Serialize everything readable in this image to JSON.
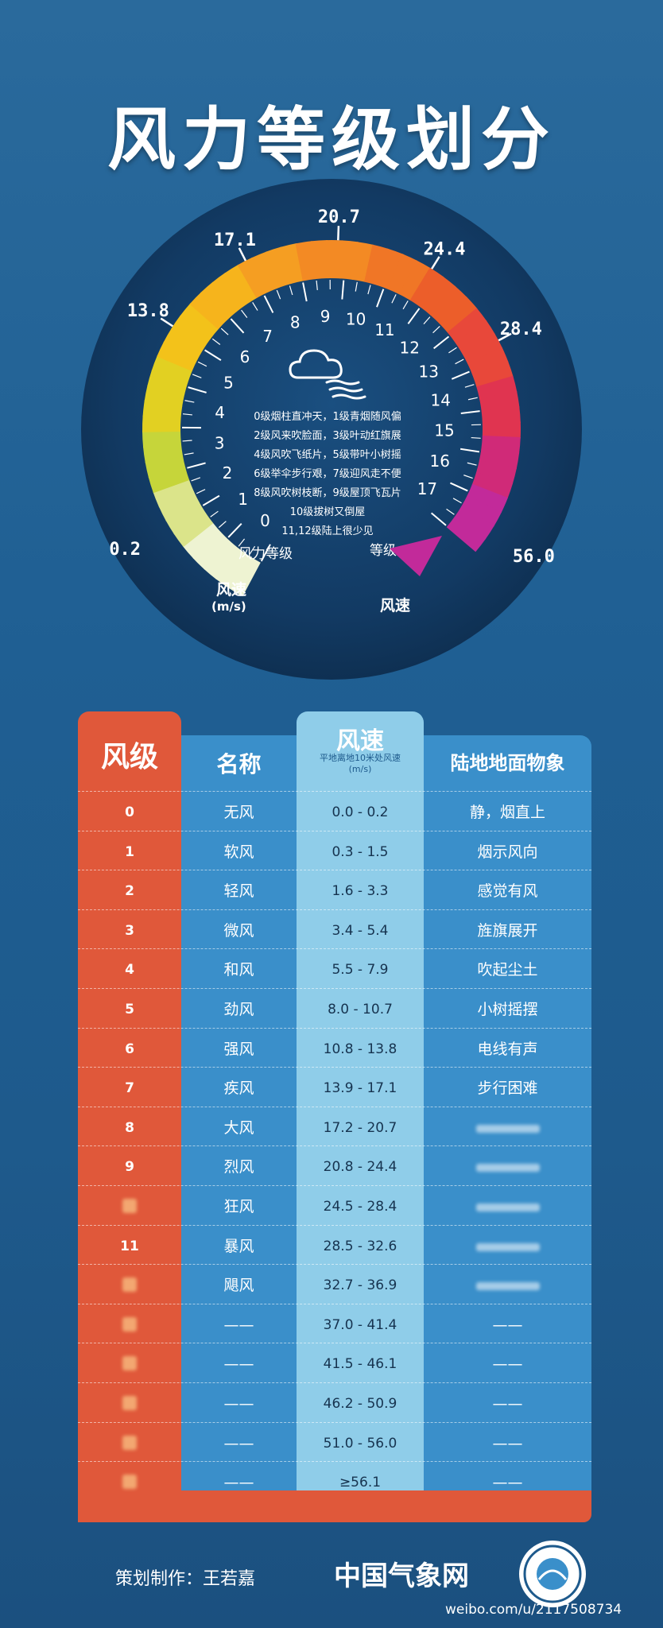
{
  "title": "风力等级划分",
  "gauge": {
    "speed_labels": [
      "0.2",
      "13.8",
      "17.1",
      "20.7",
      "24.4",
      "28.4",
      "56.0"
    ],
    "levels": [
      "0",
      "1",
      "2",
      "3",
      "4",
      "5",
      "6",
      "7",
      "8",
      "9",
      "10",
      "11",
      "12",
      "13",
      "14",
      "15",
      "16",
      "17"
    ],
    "description_lines": [
      "0级烟柱直冲天，1级青烟随风偏",
      "2级风来吹脸面，3级叶动红旗展",
      "4级风吹飞纸片，5级带叶小树摇",
      "6级举伞步行艰，7级迎风走不便",
      "8级风吹树枝断，9级屋顶飞瓦片",
      "10级拔树又倒屋",
      "11,12级陆上很少见"
    ],
    "label_level_left": "风力等级",
    "label_level_right": "等级",
    "label_speed_left": "风速",
    "label_speed_unit": "(m/s)",
    "label_speed_right": "风速",
    "cloud_icon": "cloud-wind-icon"
  },
  "table": {
    "header_level": "风级",
    "header_name": "名称",
    "header_speed": "风速",
    "header_speed_sub": "平地离地10米处风速",
    "header_speed_unit": "(m/s)",
    "header_land": "陆地地面物象",
    "rows": [
      {
        "level": "0",
        "name": "无风",
        "speed": "0.0 - 0.2",
        "land": "静，烟直上"
      },
      {
        "level": "1",
        "name": "软风",
        "speed": "0.3 - 1.5",
        "land": "烟示风向"
      },
      {
        "level": "2",
        "name": "轻风",
        "speed": "1.6 - 3.3",
        "land": "感觉有风"
      },
      {
        "level": "3",
        "name": "微风",
        "speed": "3.4 - 5.4",
        "land": "旌旗展开"
      },
      {
        "level": "4",
        "name": "和风",
        "speed": "5.5 - 7.9",
        "land": "吹起尘土"
      },
      {
        "level": "5",
        "name": "劲风",
        "speed": "8.0 - 10.7",
        "land": "小树摇摆"
      },
      {
        "level": "6",
        "name": "强风",
        "speed": "10.8 - 13.8",
        "land": "电线有声"
      },
      {
        "level": "7",
        "name": "疾风",
        "speed": "13.9 - 17.1",
        "land": "步行困难"
      },
      {
        "level": "8",
        "name": "大风",
        "speed": "17.2 - 20.7",
        "land": ""
      },
      {
        "level": "9",
        "name": "烈风",
        "speed": "20.8 - 24.4",
        "land": ""
      },
      {
        "level": "",
        "name": "狂风",
        "speed": "24.5 - 28.4",
        "land": ""
      },
      {
        "level": "11",
        "name": "暴风",
        "speed": "28.5 - 32.6",
        "land": ""
      },
      {
        "level": "",
        "name": "飓风",
        "speed": "32.7 - 36.9",
        "land": ""
      },
      {
        "level": "",
        "name": "——",
        "speed": "37.0 - 41.4",
        "land": "——"
      },
      {
        "level": "",
        "name": "——",
        "speed": "41.5 - 46.1",
        "land": "——"
      },
      {
        "level": "",
        "name": "——",
        "speed": "46.2 - 50.9",
        "land": "——"
      },
      {
        "level": "",
        "name": "——",
        "speed": "51.0 - 56.0",
        "land": "——"
      },
      {
        "level": "",
        "name": "——",
        "speed": "≥56.1",
        "land": "——"
      }
    ]
  },
  "footer": {
    "credit": "策划制作：王若嘉",
    "brand": "中国气象网",
    "watermark": "weibo.com/u/2117508734"
  }
}
